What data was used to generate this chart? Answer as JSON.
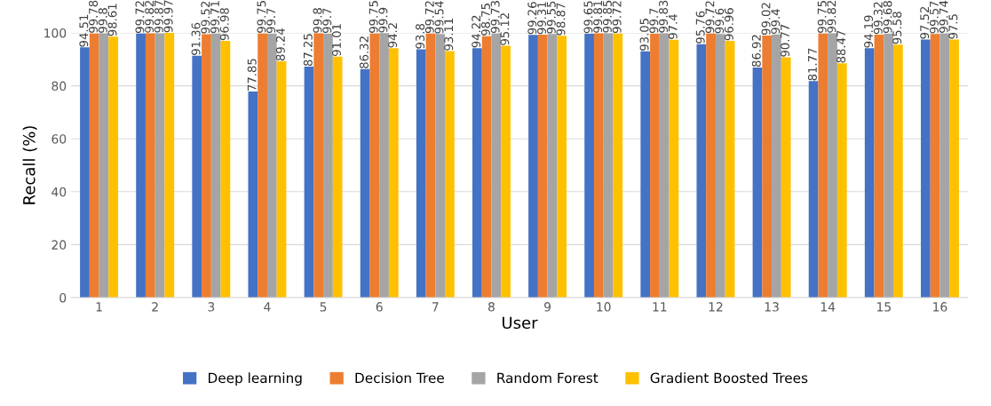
{
  "chart_data": {
    "type": "bar",
    "xlabel": "User",
    "ylabel": "Recall (%)",
    "categories": [
      "1",
      "2",
      "3",
      "4",
      "5",
      "6",
      "7",
      "8",
      "9",
      "10",
      "11",
      "12",
      "13",
      "14",
      "15",
      "16"
    ],
    "series": [
      {
        "name": "Deep learning",
        "color": "#4472c4",
        "values": [
          94.51,
          99.72,
          91.36,
          77.85,
          87.25,
          86.32,
          93.8,
          94.22,
          99.26,
          99.65,
          93.05,
          95.76,
          86.92,
          81.77,
          94.19,
          97.52
        ]
      },
      {
        "name": "Decision Tree",
        "color": "#ed7d31",
        "values": [
          99.78,
          99.82,
          99.52,
          99.75,
          99.8,
          99.75,
          99.72,
          98.75,
          99.31,
          99.81,
          99.7,
          99.72,
          99.02,
          99.75,
          99.32,
          99.57
        ]
      },
      {
        "name": "Random Forest",
        "color": "#a5a5a5",
        "values": [
          99.8,
          99.87,
          99.71,
          99.7,
          99.7,
          99.9,
          99.54,
          99.73,
          99.55,
          99.85,
          99.83,
          99.6,
          99.4,
          99.82,
          99.68,
          99.74
        ]
      },
      {
        "name": "Gradient Boosted Trees",
        "color": "#ffc000",
        "values": [
          98.61,
          99.97,
          96.98,
          89.24,
          91.01,
          94.2,
          93.11,
          95.12,
          98.87,
          99.72,
          97.4,
          96.96,
          90.77,
          88.47,
          95.58,
          97.5
        ]
      }
    ],
    "ylim": [
      0,
      100
    ],
    "yticks": [
      0,
      20,
      40,
      60,
      80,
      100
    ],
    "grid": "y",
    "legend": "bottom",
    "data_labels": true
  }
}
